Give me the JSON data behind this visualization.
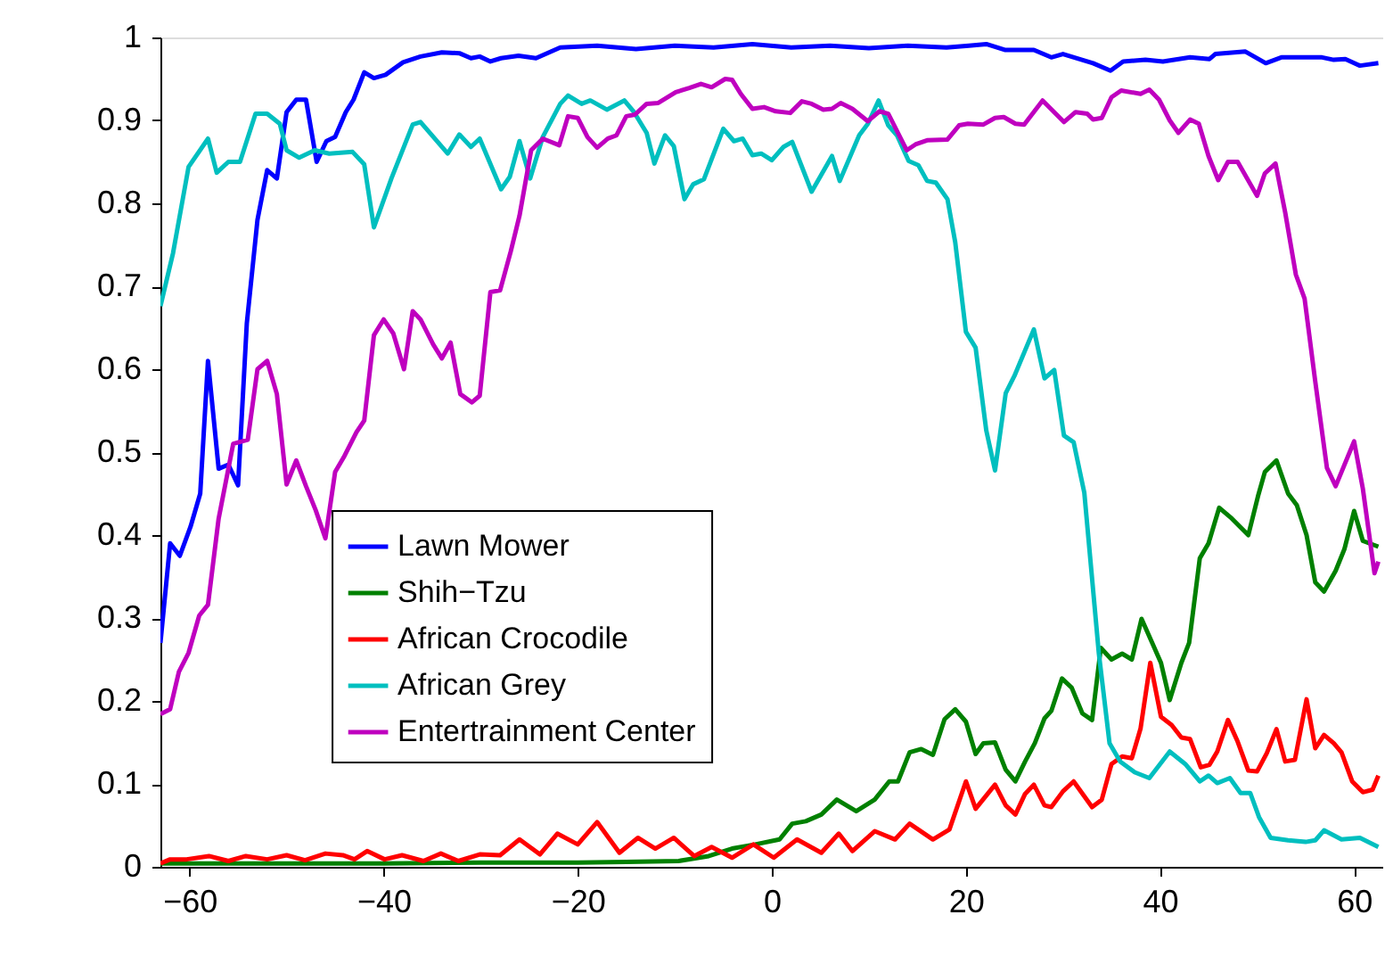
{
  "chart_data": {
    "type": "line",
    "xlim": [
      -63,
      63
    ],
    "ylim": [
      0,
      1
    ],
    "xticks": [
      -60,
      -40,
      -20,
      0,
      20,
      40,
      60
    ],
    "yticks": [
      0,
      0.1,
      0.2,
      0.3,
      0.4,
      0.5,
      0.6,
      0.7,
      0.8,
      0.9,
      1
    ],
    "grid": false,
    "legend": "left",
    "marker": "none",
    "line_style": "solid",
    "series": [
      {
        "name": "Lawn Mower",
        "color": "#0000ff",
        "x": [
          -63,
          -62,
          -61,
          -59.9,
          -58.9,
          -58.1,
          -57,
          -56,
          -55,
          -54.1,
          -53,
          -52,
          -51,
          -50,
          -49,
          -48,
          -46.9,
          -45.9,
          -45,
          -43.9,
          -43.1,
          -42,
          -41,
          -39.8,
          -38,
          -36.2,
          -34,
          -32.2,
          -31,
          -30.1,
          -29,
          -27.9,
          -26.1,
          -24.3,
          -21.8,
          -18,
          -14,
          -10,
          -6,
          -2,
          2,
          6,
          10,
          14,
          18,
          20.3,
          22.1,
          24,
          27,
          28.8,
          30,
          33.1,
          34.9,
          36.2,
          38.5,
          40.3,
          43.1,
          45.1,
          45.7,
          48.8,
          50.9,
          52.5,
          56.7,
          57.9,
          59.1,
          60.6,
          62.5
        ],
        "values": [
          0.27,
          0.39,
          0.375,
          0.41,
          0.45,
          0.61,
          0.48,
          0.485,
          0.46,
          0.655,
          0.78,
          0.84,
          0.83,
          0.91,
          0.925,
          0.925,
          0.85,
          0.875,
          0.88,
          0.91,
          0.925,
          0.958,
          0.951,
          0.955,
          0.97,
          0.977,
          0.982,
          0.981,
          0.975,
          0.977,
          0.971,
          0.975,
          0.978,
          0.975,
          0.988,
          0.99,
          0.986,
          0.99,
          0.988,
          0.992,
          0.988,
          0.99,
          0.987,
          0.99,
          0.988,
          0.99,
          0.992,
          0.985,
          0.985,
          0.976,
          0.98,
          0.969,
          0.96,
          0.971,
          0.973,
          0.971,
          0.976,
          0.974,
          0.98,
          0.983,
          0.969,
          0.976,
          0.976,
          0.973,
          0.974,
          0.966,
          0.969
        ]
      },
      {
        "name": "Shih−Tzu",
        "color": "#008000",
        "x": [
          -63,
          -50,
          -40,
          -30,
          -20,
          -15,
          -9.6,
          -6.5,
          -4.1,
          -1.7,
          0.8,
          2.1,
          3.5,
          5.1,
          6.7,
          8.7,
          10.6,
          12.1,
          13,
          14.2,
          15.4,
          16.6,
          17.8,
          18.9,
          20,
          21,
          21.8,
          23,
          24.1,
          25.1,
          26.1,
          27.1,
          28.1,
          28.8,
          29.9,
          30.9,
          32,
          33,
          33.9,
          35,
          36.1,
          37.1,
          38.1,
          39.2,
          40.1,
          41,
          42.2,
          43,
          44.1,
          45,
          46.1,
          47.4,
          49.1,
          50.1,
          50.8,
          52,
          53.2,
          54.1,
          55.1,
          56,
          56.9,
          58.1,
          59,
          60,
          60.9,
          62.5
        ],
        "values": [
          0.004,
          0.004,
          0.004,
          0.005,
          0.005,
          0.006,
          0.007,
          0.013,
          0.022,
          0.027,
          0.033,
          0.052,
          0.055,
          0.063,
          0.081,
          0.067,
          0.081,
          0.103,
          0.103,
          0.138,
          0.142,
          0.135,
          0.178,
          0.19,
          0.175,
          0.136,
          0.149,
          0.15,
          0.117,
          0.103,
          0.127,
          0.149,
          0.179,
          0.188,
          0.227,
          0.216,
          0.185,
          0.177,
          0.264,
          0.25,
          0.257,
          0.25,
          0.299,
          0.27,
          0.246,
          0.201,
          0.246,
          0.27,
          0.372,
          0.39,
          0.433,
          0.42,
          0.4,
          0.447,
          0.476,
          0.49,
          0.45,
          0.436,
          0.4,
          0.343,
          0.332,
          0.357,
          0.383,
          0.429,
          0.393,
          0.386
        ]
      },
      {
        "name": "African Crocodile",
        "color": "#ff0000",
        "x": [
          -63,
          -62,
          -60.3,
          -58,
          -56,
          -54.2,
          -52,
          -50,
          -48.1,
          -46,
          -44.2,
          -43,
          -41.7,
          -39.9,
          -38.1,
          -35.9,
          -34.1,
          -32.3,
          -30.1,
          -28,
          -26,
          -23.9,
          -22.1,
          -20,
          -18,
          -15.7,
          -13.8,
          -12,
          -10.1,
          -8,
          -6.2,
          -4.1,
          -1.9,
          0.2,
          2.6,
          5.1,
          6.9,
          8.3,
          10.6,
          12.7,
          14.2,
          16.6,
          18.3,
          20,
          21,
          23,
          24.1,
          25.1,
          26.1,
          27,
          28.1,
          28.8,
          30,
          31.1,
          33,
          34,
          35,
          36.1,
          37.1,
          38,
          39,
          40.1,
          41.2,
          42.2,
          43.1,
          44.2,
          45.1,
          45.9,
          47,
          48,
          49.1,
          50,
          51,
          52,
          52.9,
          53.9,
          55.1,
          56,
          56.9,
          57.9,
          58.7,
          59.8,
          60.9,
          61.9,
          62.5
        ],
        "values": [
          0.004,
          0.009,
          0.009,
          0.013,
          0.007,
          0.013,
          0.009,
          0.014,
          0.008,
          0.016,
          0.014,
          0.009,
          0.019,
          0.009,
          0.014,
          0.007,
          0.016,
          0.007,
          0.015,
          0.014,
          0.033,
          0.015,
          0.04,
          0.027,
          0.054,
          0.017,
          0.035,
          0.022,
          0.035,
          0.013,
          0.024,
          0.011,
          0.027,
          0.011,
          0.033,
          0.017,
          0.04,
          0.019,
          0.043,
          0.033,
          0.052,
          0.033,
          0.045,
          0.103,
          0.07,
          0.099,
          0.074,
          0.063,
          0.088,
          0.099,
          0.074,
          0.072,
          0.091,
          0.103,
          0.072,
          0.081,
          0.124,
          0.133,
          0.131,
          0.167,
          0.246,
          0.181,
          0.171,
          0.156,
          0.154,
          0.12,
          0.123,
          0.139,
          0.177,
          0.151,
          0.116,
          0.115,
          0.137,
          0.166,
          0.127,
          0.129,
          0.202,
          0.143,
          0.159,
          0.149,
          0.138,
          0.103,
          0.09,
          0.093,
          0.11
        ]
      },
      {
        "name": "African Grey",
        "color": "#00bfbf",
        "x": [
          -63,
          -61.7,
          -60.1,
          -58.1,
          -57.2,
          -56,
          -54.8,
          -53.2,
          -52,
          -50.7,
          -50,
          -48.7,
          -47.1,
          -45.6,
          -43.2,
          -42,
          -41,
          -39.2,
          -37,
          -36.2,
          -33.4,
          -32.2,
          -31,
          -30.1,
          -27.9,
          -27,
          -26,
          -24.9,
          -23.6,
          -21.8,
          -21,
          -19.6,
          -18.7,
          -17,
          -15.2,
          -14.2,
          -12.9,
          -12.1,
          -11,
          -10.1,
          -9,
          -8.1,
          -7,
          -5,
          -3.9,
          -3,
          -2,
          -1.1,
          0,
          1.2,
          2.1,
          4.1,
          6.2,
          7,
          9,
          9.9,
          11,
          12,
          12.9,
          14.1,
          15.1,
          16,
          16.9,
          18.1,
          18.9,
          20,
          21,
          22.1,
          23,
          24.1,
          25,
          27,
          28.1,
          29.1,
          30.1,
          31.1,
          32.2,
          33.7,
          34.8,
          35.9,
          37.4,
          38.9,
          41,
          42.6,
          44.1,
          45,
          45.9,
          47.2,
          48.3,
          49.3,
          50.2,
          51.4,
          53.2,
          55,
          56,
          56.9,
          58.7,
          60.6,
          62.5
        ],
        "values": [
          0.676,
          0.74,
          0.844,
          0.878,
          0.837,
          0.85,
          0.85,
          0.908,
          0.908,
          0.896,
          0.864,
          0.855,
          0.864,
          0.86,
          0.862,
          0.847,
          0.771,
          0.83,
          0.895,
          0.898,
          0.86,
          0.883,
          0.868,
          0.878,
          0.817,
          0.832,
          0.875,
          0.83,
          0.88,
          0.92,
          0.93,
          0.92,
          0.924,
          0.913,
          0.924,
          0.91,
          0.885,
          0.848,
          0.882,
          0.869,
          0.805,
          0.823,
          0.829,
          0.89,
          0.875,
          0.878,
          0.858,
          0.86,
          0.852,
          0.868,
          0.874,
          0.814,
          0.857,
          0.827,
          0.882,
          0.896,
          0.924,
          0.894,
          0.882,
          0.851,
          0.846,
          0.827,
          0.825,
          0.805,
          0.753,
          0.645,
          0.626,
          0.526,
          0.478,
          0.571,
          0.592,
          0.648,
          0.589,
          0.599,
          0.52,
          0.512,
          0.451,
          0.257,
          0.149,
          0.127,
          0.114,
          0.107,
          0.139,
          0.124,
          0.103,
          0.11,
          0.101,
          0.107,
          0.089,
          0.089,
          0.06,
          0.035,
          0.032,
          0.03,
          0.032,
          0.044,
          0.033,
          0.035,
          0.024
        ]
      },
      {
        "name": "Entertrainment Center",
        "color": "#bf00bf",
        "x": [
          -63,
          -62,
          -61.1,
          -60.1,
          -59,
          -58.1,
          -57,
          -55.5,
          -54,
          -53,
          -52,
          -51,
          -50,
          -49,
          -48,
          -47,
          -46,
          -45,
          -44.1,
          -42.8,
          -42,
          -41,
          -40,
          -39,
          -37.9,
          -37,
          -36.2,
          -34.9,
          -34,
          -33.1,
          -32.1,
          -30.9,
          -30.1,
          -29,
          -28,
          -26.9,
          -26,
          -24.8,
          -23.6,
          -21.9,
          -21,
          -20,
          -19,
          -18,
          -16.9,
          -16,
          -15,
          -14.1,
          -12.9,
          -11.7,
          -9.9,
          -8.5,
          -7.3,
          -6.2,
          -4.8,
          -4.1,
          -3.2,
          -2,
          -0.8,
          0.4,
          1.9,
          3.1,
          4.1,
          5.3,
          6.2,
          7.1,
          8.3,
          9.9,
          11.1,
          12,
          13.9,
          14.8,
          16,
          18.1,
          19.3,
          20.2,
          21.8,
          23,
          23.9,
          25.1,
          26,
          27.9,
          30.1,
          31.3,
          32.5,
          33.1,
          34,
          35,
          36,
          38,
          38.9,
          39.9,
          41,
          41.9,
          43.1,
          44,
          45,
          46,
          47,
          48,
          50,
          50.8,
          51.9,
          52.9,
          54,
          54.9,
          56,
          57.2,
          58.1,
          60,
          60.9,
          62.1,
          62.5
        ],
        "values": [
          0.184,
          0.19,
          0.235,
          0.258,
          0.303,
          0.316,
          0.42,
          0.51,
          0.515,
          0.6,
          0.61,
          0.57,
          0.461,
          0.49,
          0.459,
          0.43,
          0.396,
          0.476,
          0.494,
          0.524,
          0.538,
          0.641,
          0.66,
          0.643,
          0.6,
          0.67,
          0.66,
          0.63,
          0.613,
          0.632,
          0.57,
          0.56,
          0.568,
          0.693,
          0.695,
          0.742,
          0.785,
          0.864,
          0.878,
          0.87,
          0.905,
          0.903,
          0.88,
          0.867,
          0.878,
          0.882,
          0.905,
          0.907,
          0.92,
          0.921,
          0.934,
          0.939,
          0.944,
          0.94,
          0.95,
          0.949,
          0.932,
          0.914,
          0.916,
          0.911,
          0.909,
          0.923,
          0.92,
          0.913,
          0.914,
          0.921,
          0.914,
          0.899,
          0.911,
          0.908,
          0.864,
          0.871,
          0.876,
          0.877,
          0.894,
          0.896,
          0.895,
          0.903,
          0.904,
          0.896,
          0.895,
          0.924,
          0.898,
          0.91,
          0.908,
          0.901,
          0.903,
          0.928,
          0.936,
          0.932,
          0.937,
          0.925,
          0.9,
          0.885,
          0.901,
          0.896,
          0.857,
          0.828,
          0.85,
          0.85,
          0.809,
          0.836,
          0.848,
          0.789,
          0.714,
          0.685,
          0.585,
          0.481,
          0.459,
          0.513,
          0.456,
          0.354,
          0.368
        ]
      }
    ]
  }
}
